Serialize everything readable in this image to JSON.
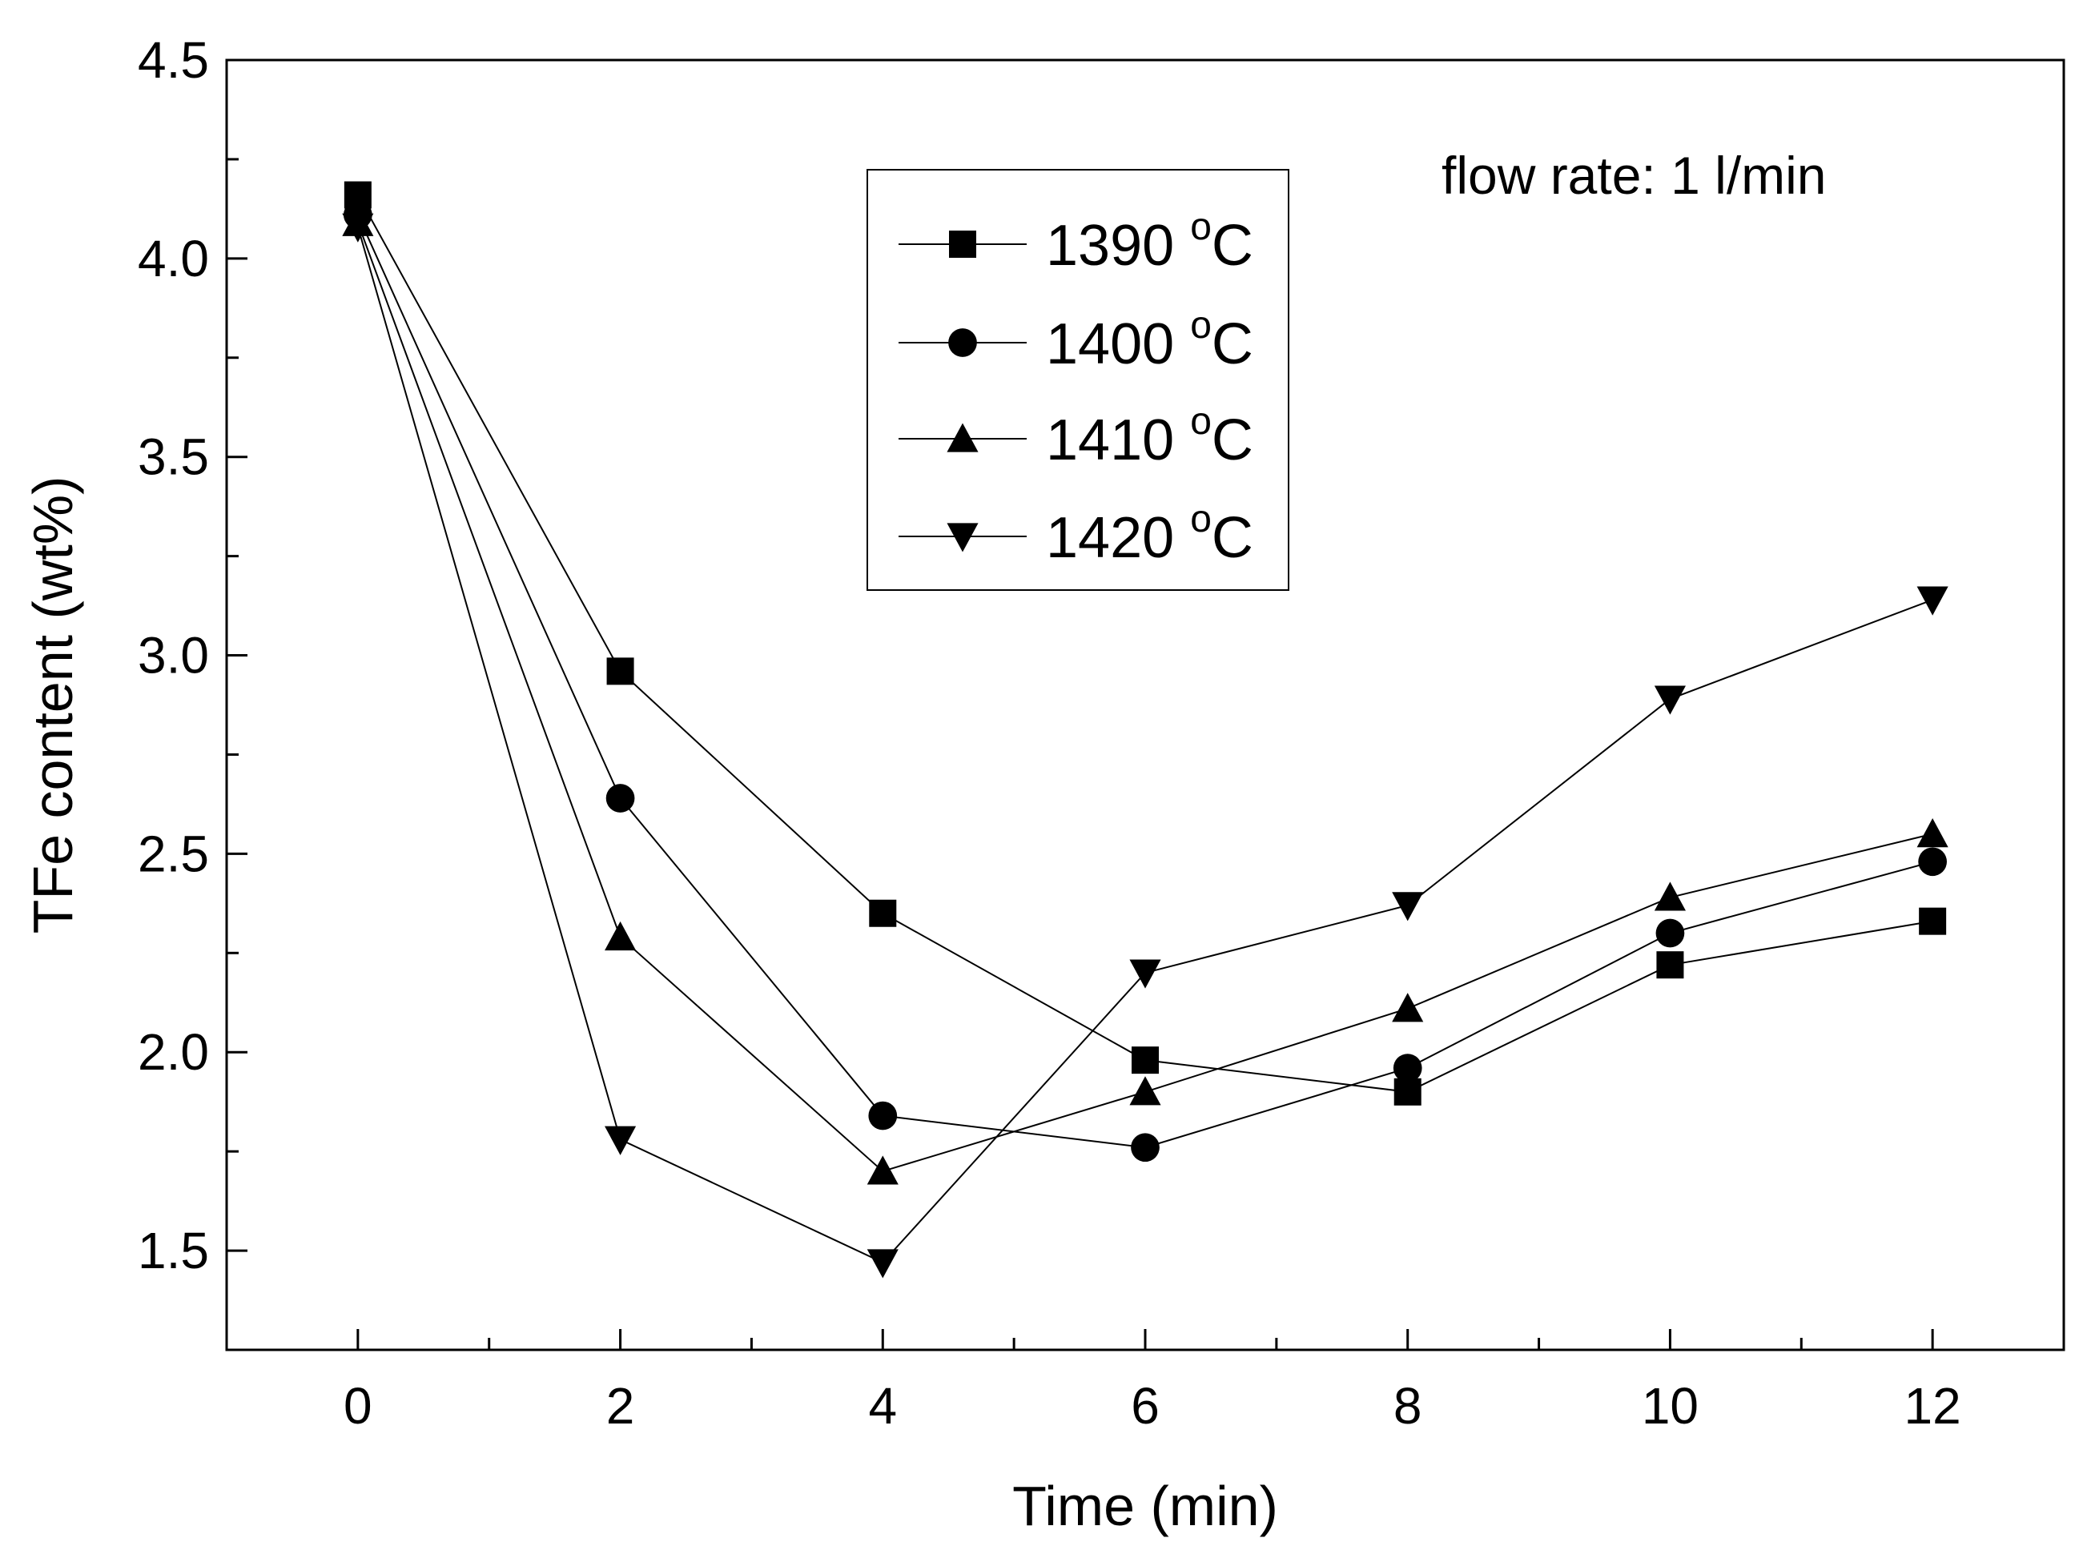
{
  "chart_data": {
    "type": "line",
    "title": "",
    "xlabel": "Time (min)",
    "ylabel": "TFe content (wt%)",
    "xlim": [
      -1,
      13
    ],
    "ylim": [
      1.25,
      4.5
    ],
    "x_major_ticks": [
      0,
      2,
      4,
      6,
      8,
      10,
      12
    ],
    "x_tick_labels": [
      "0",
      "2",
      "4",
      "6",
      "8",
      "10",
      "12"
    ],
    "x_minor_ticks": [
      1,
      3,
      5,
      7,
      9,
      11
    ],
    "y_major_ticks": [
      1.5,
      2.0,
      2.5,
      3.0,
      3.5,
      4.0,
      4.5
    ],
    "y_tick_labels": [
      "1.5",
      "2.0",
      "2.5",
      "3.0",
      "3.5",
      "4.0",
      "4.5"
    ],
    "y_minor_ticks": [
      1.75,
      2.25,
      2.75,
      3.25,
      3.75,
      4.25
    ],
    "grid": false,
    "legend_position": "upper-center",
    "annotation": "flow rate: 1 l/min",
    "x": [
      0,
      2,
      4,
      6,
      8,
      10,
      12
    ],
    "series": [
      {
        "name": "1390",
        "unit_sup": "o",
        "unit": "C",
        "marker": "square",
        "values": [
          4.16,
          2.96,
          2.35,
          1.98,
          1.9,
          2.22,
          2.33
        ]
      },
      {
        "name": "1400",
        "unit_sup": "o",
        "unit": "C",
        "marker": "circle",
        "values": [
          4.11,
          2.64,
          1.84,
          1.76,
          1.96,
          2.3,
          2.48
        ]
      },
      {
        "name": "1410",
        "unit_sup": "o",
        "unit": "C",
        "marker": "triangle-up",
        "values": [
          4.09,
          2.29,
          1.7,
          1.9,
          2.11,
          2.39,
          2.55
        ]
      },
      {
        "name": "1420",
        "unit_sup": "o",
        "unit": "C",
        "marker": "triangle-down",
        "values": [
          4.08,
          1.78,
          1.47,
          2.2,
          2.37,
          2.89,
          3.14
        ]
      }
    ],
    "colors": {
      "line": "#000000",
      "marker": "#000000",
      "background": "#ffffff"
    }
  }
}
